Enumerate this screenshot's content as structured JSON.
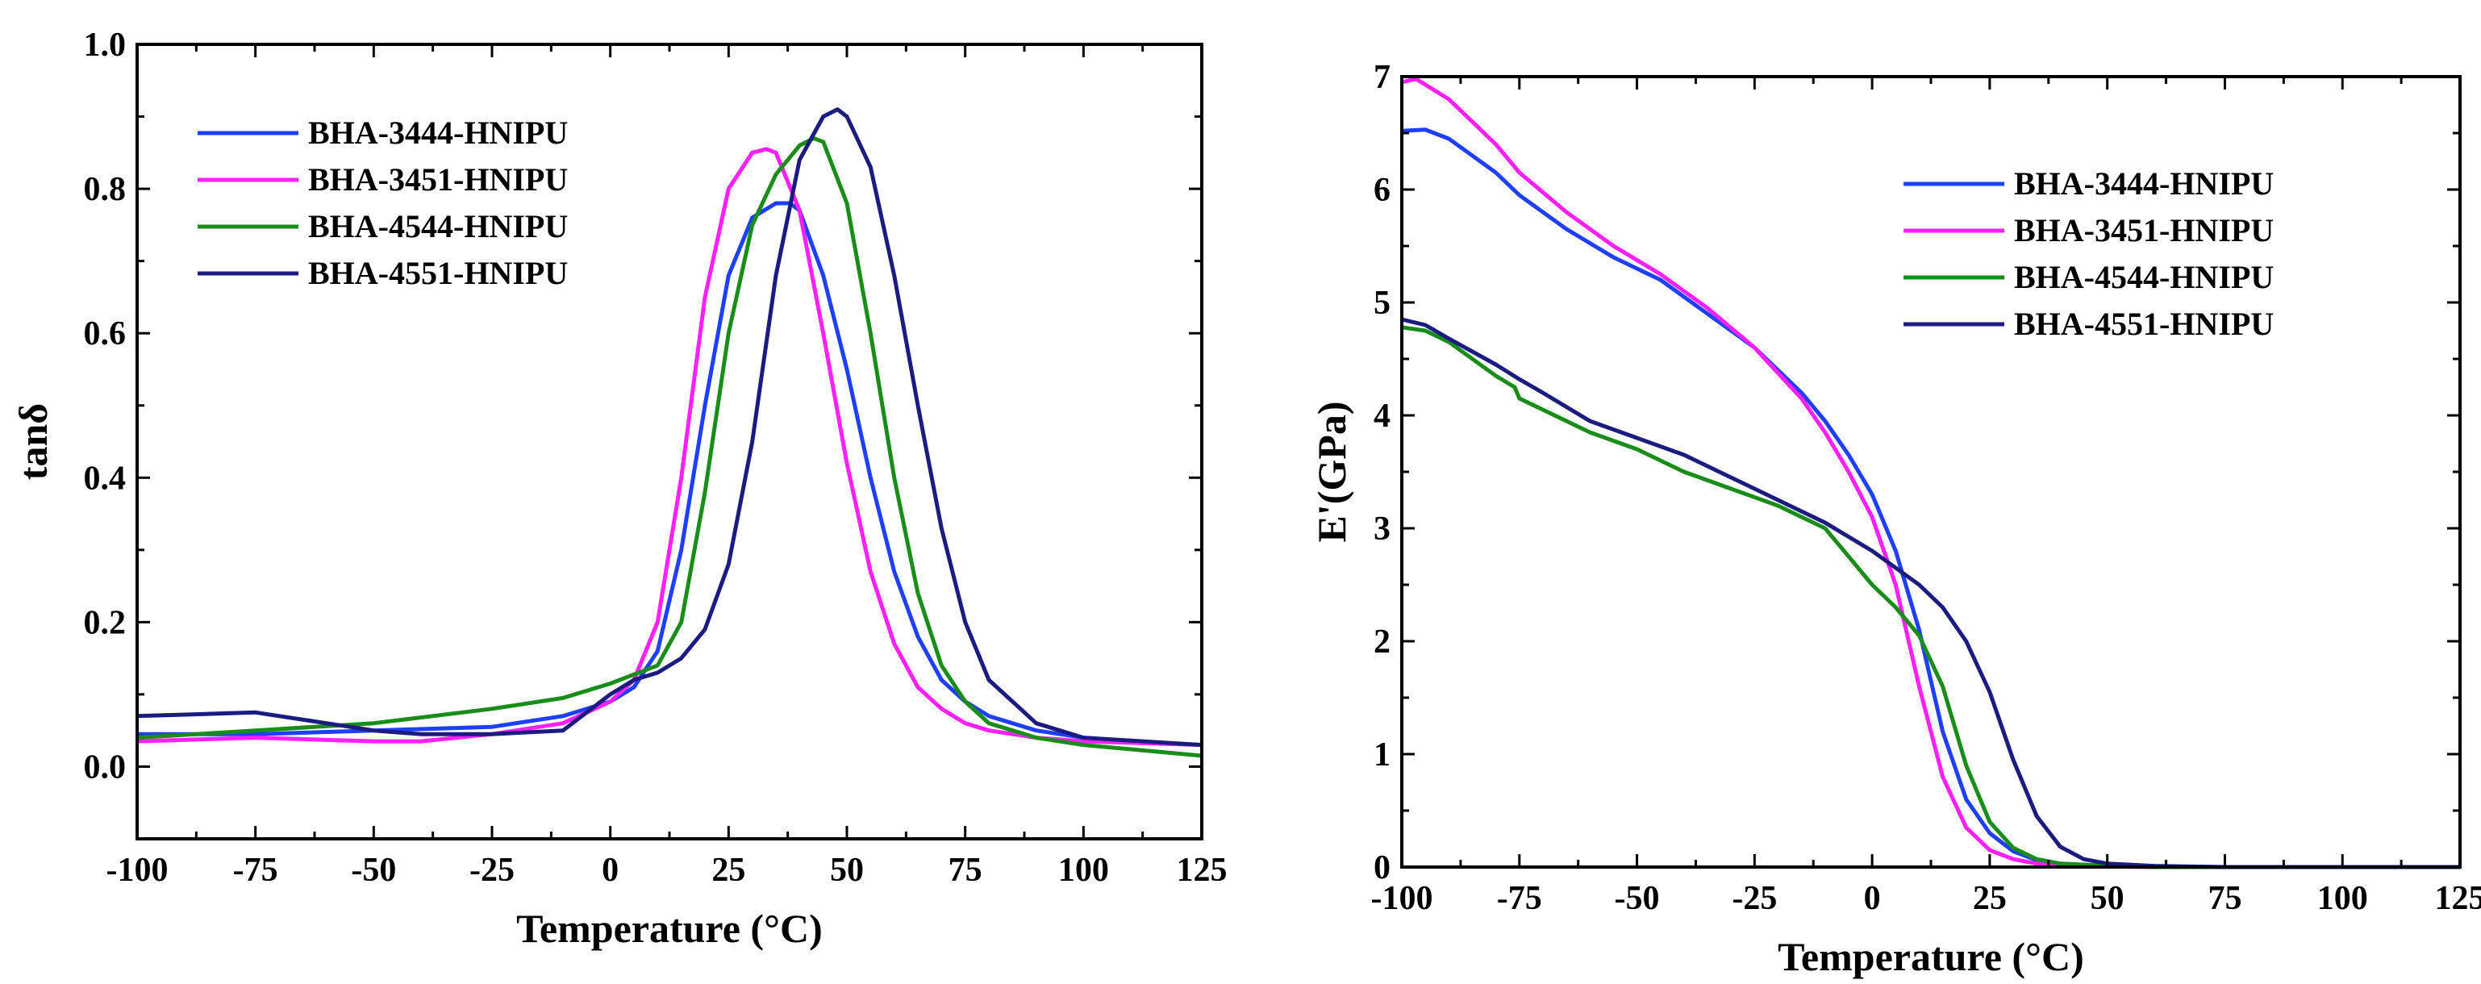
{
  "chart_data": [
    {
      "type": "line",
      "title": "",
      "xlabel": "Temperature (°C)",
      "ylabel": "tanδ",
      "xlim": [
        -100,
        125
      ],
      "ylim": [
        -0.1,
        1.0
      ],
      "xticks": [
        -100,
        -75,
        -50,
        -25,
        0,
        25,
        50,
        75,
        100,
        125
      ],
      "xtick_labels": [
        "-100",
        "-75",
        "-50",
        "-25",
        "0",
        "25",
        "50",
        "75",
        "100",
        "125"
      ],
      "yticks": [
        0.0,
        0.2,
        0.4,
        0.6,
        0.8,
        1.0
      ],
      "ytick_labels": [
        "0.0",
        "0.2",
        "0.4",
        "0.6",
        "0.8",
        "1.0"
      ],
      "grid": false,
      "legend_position": "upper-left",
      "series": [
        {
          "name": "BHA-3444-HNIPU",
          "color": "#1f3fff",
          "x": [
            -100,
            -75,
            -50,
            -25,
            -10,
            0,
            5,
            10,
            15,
            20,
            25,
            30,
            35,
            38,
            40,
            45,
            50,
            55,
            60,
            65,
            70,
            75,
            80,
            90,
            100,
            110,
            125
          ],
          "y": [
            0.045,
            0.045,
            0.05,
            0.055,
            0.07,
            0.09,
            0.11,
            0.16,
            0.3,
            0.5,
            0.68,
            0.76,
            0.78,
            0.78,
            0.77,
            0.68,
            0.55,
            0.4,
            0.27,
            0.18,
            0.12,
            0.09,
            0.07,
            0.05,
            0.04,
            0.035,
            0.03
          ]
        },
        {
          "name": "BHA-3451-HNIPU",
          "color": "#ff1fff",
          "x": [
            -100,
            -75,
            -50,
            -40,
            -25,
            -10,
            0,
            5,
            10,
            15,
            20,
            25,
            30,
            33,
            35,
            40,
            45,
            50,
            55,
            60,
            65,
            70,
            75,
            80,
            90,
            100,
            125
          ],
          "y": [
            0.035,
            0.04,
            0.035,
            0.035,
            0.045,
            0.06,
            0.09,
            0.12,
            0.2,
            0.4,
            0.65,
            0.8,
            0.85,
            0.855,
            0.85,
            0.77,
            0.6,
            0.42,
            0.27,
            0.17,
            0.11,
            0.08,
            0.06,
            0.05,
            0.04,
            0.035,
            0.03
          ]
        },
        {
          "name": "BHA-4544-HNIPU",
          "color": "#1a8c1a",
          "x": [
            -100,
            -75,
            -50,
            -25,
            -10,
            0,
            10,
            15,
            20,
            25,
            30,
            35,
            40,
            43,
            45,
            50,
            55,
            60,
            65,
            70,
            75,
            80,
            90,
            100,
            125
          ],
          "y": [
            0.04,
            0.05,
            0.06,
            0.08,
            0.095,
            0.115,
            0.14,
            0.2,
            0.38,
            0.6,
            0.75,
            0.82,
            0.86,
            0.87,
            0.865,
            0.78,
            0.6,
            0.4,
            0.24,
            0.14,
            0.09,
            0.06,
            0.04,
            0.03,
            0.015
          ]
        },
        {
          "name": "BHA-4551-HNIPU",
          "color": "#1c1c80",
          "x": [
            -100,
            -75,
            -60,
            -50,
            -40,
            -25,
            -10,
            0,
            5,
            10,
            15,
            20,
            25,
            30,
            35,
            40,
            45,
            48,
            50,
            55,
            60,
            65,
            70,
            75,
            80,
            90,
            100,
            125
          ],
          "y": [
            0.07,
            0.075,
            0.06,
            0.05,
            0.045,
            0.045,
            0.05,
            0.1,
            0.12,
            0.13,
            0.15,
            0.19,
            0.28,
            0.45,
            0.68,
            0.84,
            0.9,
            0.91,
            0.9,
            0.83,
            0.68,
            0.5,
            0.33,
            0.2,
            0.12,
            0.06,
            0.04,
            0.03
          ]
        }
      ]
    },
    {
      "type": "line",
      "title": "",
      "xlabel": "Temperature (°C)",
      "ylabel": "E'(GPa)",
      "xlim": [
        -100,
        125
      ],
      "ylim": [
        0,
        7
      ],
      "xticks": [
        -100,
        -75,
        -50,
        -25,
        0,
        25,
        50,
        75,
        100,
        125
      ],
      "xtick_labels": [
        "-100",
        "-75",
        "-50",
        "-25",
        "0",
        "25",
        "50",
        "75",
        "100",
        "125"
      ],
      "yticks": [
        0,
        1,
        2,
        3,
        4,
        5,
        6,
        7
      ],
      "ytick_labels": [
        "0",
        "1",
        "2",
        "3",
        "4",
        "5",
        "6",
        "7"
      ],
      "grid": false,
      "legend_position": "upper-right",
      "series": [
        {
          "name": "BHA-3444-HNIPU",
          "color": "#1f3fff",
          "x": [
            -100,
            -95,
            -90,
            -80,
            -75,
            -65,
            -55,
            -45,
            -35,
            -25,
            -15,
            -10,
            -5,
            0,
            5,
            10,
            15,
            20,
            25,
            30,
            35,
            40,
            50,
            60,
            75,
            100,
            125
          ],
          "y": [
            6.52,
            6.53,
            6.45,
            6.15,
            5.95,
            5.65,
            5.4,
            5.2,
            4.9,
            4.6,
            4.2,
            3.95,
            3.65,
            3.3,
            2.8,
            2.1,
            1.2,
            0.6,
            0.3,
            0.14,
            0.06,
            0.03,
            0.01,
            0.005,
            0,
            0,
            0
          ]
        },
        {
          "name": "BHA-3451-HNIPU",
          "color": "#ff1fff",
          "x": [
            -100,
            -97,
            -90,
            -80,
            -75,
            -65,
            -55,
            -45,
            -35,
            -25,
            -15,
            -10,
            -5,
            0,
            5,
            10,
            15,
            20,
            25,
            30,
            35,
            40,
            50,
            60,
            75,
            100,
            125
          ],
          "y": [
            6.95,
            6.98,
            6.8,
            6.4,
            6.15,
            5.8,
            5.5,
            5.25,
            4.95,
            4.6,
            4.15,
            3.85,
            3.5,
            3.1,
            2.5,
            1.6,
            0.8,
            0.35,
            0.15,
            0.07,
            0.03,
            0.015,
            0.005,
            0,
            0,
            0,
            0
          ]
        },
        {
          "name": "BHA-4544-HNIPU",
          "color": "#1a8c1a",
          "x": [
            -100,
            -95,
            -90,
            -85,
            -80,
            -76,
            -75,
            -70,
            -60,
            -50,
            -40,
            -30,
            -20,
            -10,
            -5,
            0,
            5,
            10,
            15,
            20,
            25,
            30,
            35,
            40,
            50,
            60,
            75,
            100,
            125
          ],
          "y": [
            4.78,
            4.75,
            4.65,
            4.5,
            4.35,
            4.25,
            4.15,
            4.05,
            3.85,
            3.7,
            3.5,
            3.35,
            3.2,
            3.0,
            2.75,
            2.5,
            2.3,
            2.05,
            1.6,
            0.9,
            0.4,
            0.17,
            0.07,
            0.03,
            0.01,
            0,
            0,
            0,
            0
          ]
        },
        {
          "name": "BHA-4551-HNIPU",
          "color": "#1c1c80",
          "x": [
            -100,
            -95,
            -90,
            -80,
            -75,
            -70,
            -60,
            -50,
            -40,
            -30,
            -20,
            -10,
            0,
            10,
            15,
            20,
            25,
            30,
            35,
            40,
            45,
            50,
            60,
            75,
            100,
            125
          ],
          "y": [
            4.85,
            4.8,
            4.68,
            4.45,
            4.32,
            4.2,
            3.95,
            3.8,
            3.65,
            3.45,
            3.25,
            3.05,
            2.8,
            2.5,
            2.3,
            2.0,
            1.55,
            0.95,
            0.45,
            0.18,
            0.07,
            0.03,
            0.01,
            0,
            0,
            0
          ]
        }
      ]
    }
  ]
}
